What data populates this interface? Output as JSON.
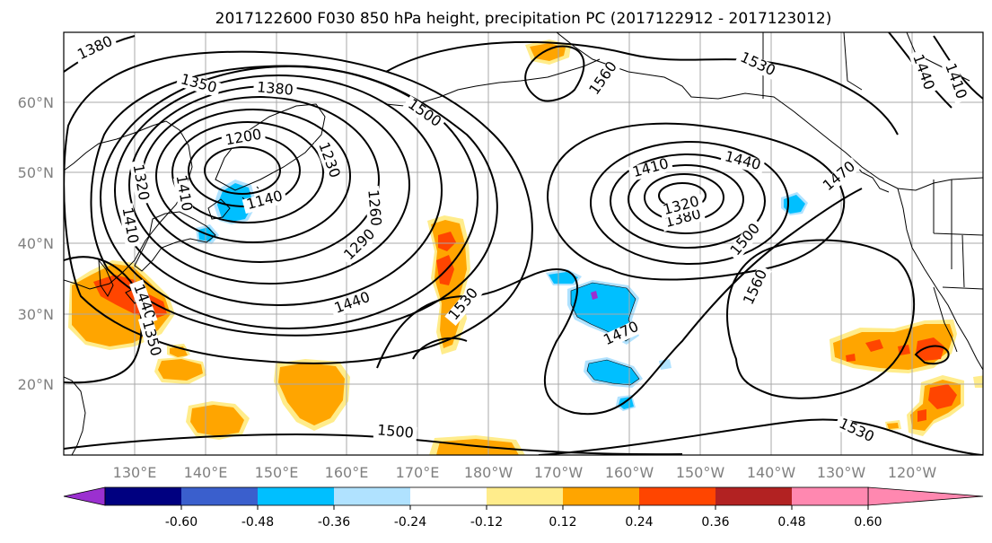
{
  "title": "2017122600 F030 850 hPa height, precipitation PC (2017122912 - 2017123012)",
  "map": {
    "lat_labels": [
      "60°N",
      "50°N",
      "40°N",
      "30°N",
      "20°N"
    ],
    "lon_labels": [
      "130°E",
      "140°E",
      "150°E",
      "160°E",
      "170°E",
      "180°W",
      "170°W",
      "160°W",
      "150°W",
      "140°W",
      "130°W",
      "120°W"
    ],
    "contour_labels": [
      "1380",
      "1350",
      "1380",
      "1500",
      "1560",
      "1530",
      "1440",
      "1410",
      "1200",
      "1320",
      "1230",
      "1140",
      "1260",
      "1290",
      "1410",
      "1440",
      "1410",
      "1440",
      "1470",
      "1380",
      "1320",
      "1500",
      "1560",
      "1530",
      "1440",
      "1470",
      "1500",
      "1530",
      "1350",
      "1410"
    ]
  },
  "colorbar": {
    "ticks": [
      "-0.60",
      "-0.48",
      "-0.36",
      "-0.24",
      "-0.12",
      "0.12",
      "0.24",
      "0.36",
      "0.48",
      "0.60"
    ],
    "colors": [
      "#9b30d0",
      "#000080",
      "#3a5fcd",
      "#00bfff",
      "#b0e2ff",
      "#ffffff",
      "#ffec8b",
      "#ffa500",
      "#ff4500",
      "#b22222",
      "#ff88b0"
    ]
  }
}
